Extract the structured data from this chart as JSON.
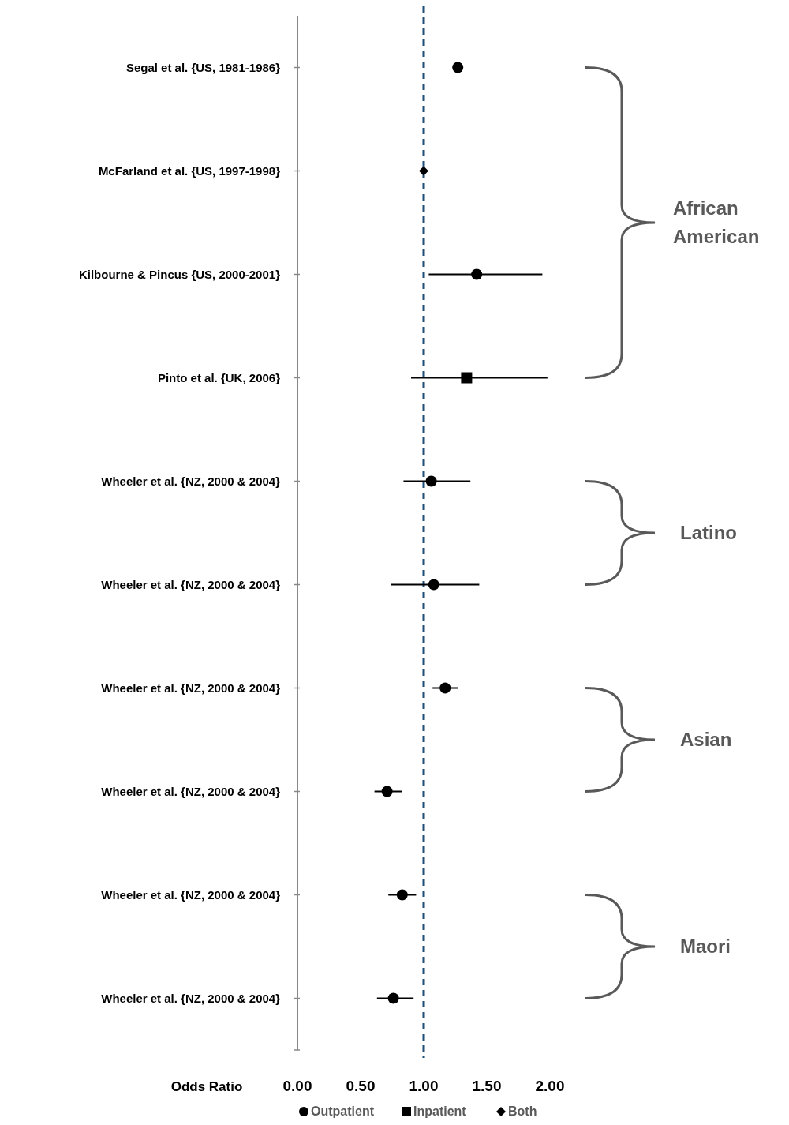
{
  "chart_data": {
    "type": "scatter",
    "orientation": "horizontal",
    "categories": [
      "Segal et al. {US, 1981-1986}",
      "McFarland et al. {US, 1997-1998}",
      "Kilbourne & Pincus {US, 2000-2001}",
      "Pinto et al. {UK, 2006}",
      "Wheeler et al. {NZ, 2000 & 2004}",
      "Wheeler et al. {NZ, 2000 & 2004}",
      "Wheeler et al. {NZ, 2000 & 2004}",
      "Wheeler et al. {NZ, 2000 & 2004}",
      "Wheeler et al. {NZ, 2000 & 2004}",
      "Wheeler et al. {NZ, 2000 & 2004}"
    ],
    "series": [
      {
        "name": "Outpatient",
        "color": "#000000",
        "marker": "circle",
        "values": [
          1.27,
          null,
          1.42,
          null,
          1.06,
          1.08,
          1.17,
          0.71,
          0.83,
          0.76
        ],
        "errors": [
          null,
          null,
          [
            1.04,
            1.94
          ],
          null,
          [
            0.84,
            1.37
          ],
          [
            0.74,
            1.44
          ],
          [
            1.07,
            1.27
          ],
          [
            0.61,
            0.83
          ],
          [
            0.72,
            0.94
          ],
          [
            0.63,
            0.92
          ]
        ]
      },
      {
        "name": "Inpatient",
        "color": "#000000",
        "marker": "square",
        "values": [
          null,
          null,
          null,
          1.34,
          null,
          null,
          null,
          null,
          null,
          null
        ],
        "errors": [
          null,
          null,
          null,
          [
            0.9,
            1.98
          ],
          null,
          null,
          null,
          null,
          null,
          null
        ]
      },
      {
        "name": "Both",
        "color": "#000000",
        "marker": "diamond",
        "values": [
          null,
          1.0,
          null,
          null,
          null,
          null,
          null,
          null,
          null,
          null
        ]
      }
    ],
    "xlim": [
      0,
      2
    ],
    "xticks": [
      {
        "value": 0,
        "label": "0.00"
      },
      {
        "value": 0.5,
        "label": "0.50"
      },
      {
        "value": 1,
        "label": "1.00"
      },
      {
        "value": 1.5,
        "label": "1.50"
      },
      {
        "value": 2,
        "label": "2.00"
      }
    ],
    "xlabel": "Odds Ratio",
    "ref_lines": [
      {
        "axis": "x",
        "value": 1,
        "color": "#1f4e79",
        "line_style": "dashed"
      }
    ],
    "annotations": [
      "African American",
      "Latino",
      "Asian",
      "Maori"
    ],
    "legend": "bottom",
    "grid": false
  }
}
